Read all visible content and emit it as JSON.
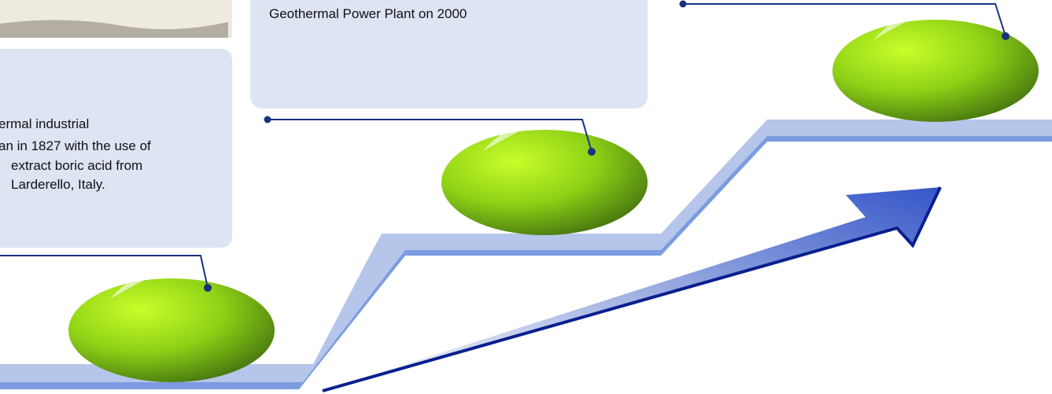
{
  "left_box": {
    "lines": [
      "ermal industrial",
      "an in 1827 with the use of",
      "extract boric acid from",
      "Larderello, Italy."
    ]
  },
  "middle_box": {
    "text": "Geothermal Power Plant on 2000"
  }
}
